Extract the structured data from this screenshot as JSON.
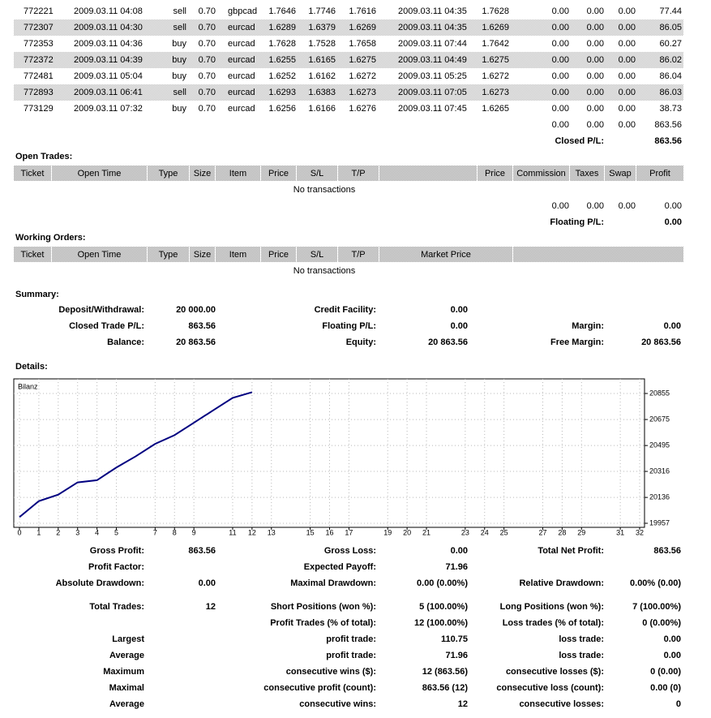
{
  "closed_trades": {
    "rows": [
      [
        "772221",
        "2009.03.11 04:08",
        "sell",
        "0.70",
        "gbpcad",
        "1.7646",
        "1.7746",
        "1.7616",
        "2009.03.11 04:35",
        "1.7628",
        "0.00",
        "0.00",
        "0.00",
        "77.44"
      ],
      [
        "772307",
        "2009.03.11 04:30",
        "sell",
        "0.70",
        "eurcad",
        "1.6289",
        "1.6379",
        "1.6269",
        "2009.03.11 04:35",
        "1.6269",
        "0.00",
        "0.00",
        "0.00",
        "86.05"
      ],
      [
        "772353",
        "2009.03.11 04:36",
        "buy",
        "0.70",
        "eurcad",
        "1.7628",
        "1.7528",
        "1.7658",
        "2009.03.11 07:44",
        "1.7642",
        "0.00",
        "0.00",
        "0.00",
        "60.27"
      ],
      [
        "772372",
        "2009.03.11 04:39",
        "buy",
        "0.70",
        "eurcad",
        "1.6255",
        "1.6165",
        "1.6275",
        "2009.03.11 04:49",
        "1.6275",
        "0.00",
        "0.00",
        "0.00",
        "86.02"
      ],
      [
        "772481",
        "2009.03.11 05:04",
        "buy",
        "0.70",
        "eurcad",
        "1.6252",
        "1.6162",
        "1.6272",
        "2009.03.11 05:25",
        "1.6272",
        "0.00",
        "0.00",
        "0.00",
        "86.04"
      ],
      [
        "772893",
        "2009.03.11 06:41",
        "sell",
        "0.70",
        "eurcad",
        "1.6293",
        "1.6383",
        "1.6273",
        "2009.03.11 07:05",
        "1.6273",
        "0.00",
        "0.00",
        "0.00",
        "86.03"
      ],
      [
        "773129",
        "2009.03.11 07:32",
        "buy",
        "0.70",
        "eurcad",
        "1.6256",
        "1.6166",
        "1.6276",
        "2009.03.11 07:45",
        "1.6265",
        "0.00",
        "0.00",
        "0.00",
        "38.73"
      ]
    ],
    "totals": [
      "0.00",
      "0.00",
      "0.00",
      "863.56"
    ],
    "pl_label": "Closed P/L:",
    "pl_value": "863.56"
  },
  "open_trades": {
    "title": "Open Trades:",
    "headers": [
      "Ticket",
      "Open Time",
      "Type",
      "Size",
      "Item",
      "Price",
      "S/L",
      "T/P",
      "Price",
      "Commission",
      "Taxes",
      "Swap",
      "Profit"
    ],
    "empty": "No transactions",
    "totals": [
      "0.00",
      "0.00",
      "0.00",
      "0.00"
    ],
    "pl_label": "Floating P/L:",
    "pl_value": "0.00"
  },
  "working_orders": {
    "title": "Working Orders:",
    "headers": [
      "Ticket",
      "Open Time",
      "Type",
      "Size",
      "Item",
      "Price",
      "S/L",
      "T/P",
      "Market Price"
    ],
    "empty": "No transactions"
  },
  "summary": {
    "title": "Summary:",
    "rows": [
      {
        "left": {
          "label": "Deposit/Withdrawal:",
          "value": "20 000.00"
        },
        "middle": {
          "label": "Credit Facility:",
          "value": "0.00"
        }
      },
      {
        "left": {
          "label": "Closed Trade P/L:",
          "value": "863.56"
        },
        "middle": {
          "label": "Floating P/L:",
          "value": "0.00"
        },
        "right": {
          "label": "Margin:",
          "value": "0.00"
        }
      },
      {
        "left": {
          "label": "Balance:",
          "value": "20 863.56"
        },
        "middle": {
          "label": "Equity:",
          "value": "20 863.56"
        },
        "right": {
          "label": "Free Margin:",
          "value": "20 863.56"
        }
      }
    ]
  },
  "details": {
    "title": "Details:",
    "stats": [
      {
        "left": {
          "label": "Gross Profit:",
          "value": "863.56"
        },
        "middle": {
          "label": "Gross Loss:",
          "value": "0.00"
        },
        "right": {
          "label": "Total Net Profit:",
          "value": "863.56"
        }
      },
      {
        "left": {
          "label": "Profit Factor:"
        },
        "middle": {
          "label": "Expected Payoff:",
          "value": "71.96"
        }
      },
      {
        "left": {
          "label": "Absolute Drawdown:",
          "value": "0.00"
        },
        "middle": {
          "label": "Maximal Drawdown:",
          "value": "0.00 (0.00%)"
        },
        "right": {
          "label": "Relative Drawdown:",
          "value": "0.00% (0.00)"
        }
      },
      {
        "left": {
          "label": "Total Trades:",
          "value": "12"
        },
        "middle": {
          "label": "Short Positions (won %):",
          "value": "5 (100.00%)"
        },
        "right": {
          "label": "Long Positions (won %):",
          "value": "7 (100.00%)"
        }
      },
      {
        "middle": {
          "label": "Profit Trades (% of total):",
          "value": "12 (100.00%)"
        },
        "right": {
          "label": "Loss trades (% of total):",
          "value": "0 (0.00%)"
        }
      },
      {
        "left": {
          "label": "Largest"
        },
        "middle": {
          "label": "profit trade:",
          "value": "110.75"
        },
        "right": {
          "label": "loss trade:",
          "value": "0.00"
        }
      },
      {
        "left": {
          "label": "Average"
        },
        "middle": {
          "label": "profit trade:",
          "value": "71.96"
        },
        "right": {
          "label": "loss trade:",
          "value": "0.00"
        }
      },
      {
        "left": {
          "label": "Maximum"
        },
        "middle": {
          "label": "consecutive wins ($):",
          "value": "12 (863.56)"
        },
        "right": {
          "label": "consecutive losses ($):",
          "value": "0 (0.00)"
        }
      },
      {
        "left": {
          "label": "Maximal"
        },
        "middle": {
          "label": "consecutive profit (count):",
          "value": "863.56 (12)"
        },
        "right": {
          "label": "consecutive loss (count):",
          "value": "0.00 (0)"
        }
      },
      {
        "left": {
          "label": "Average"
        },
        "middle": {
          "label": "consecutive wins:",
          "value": "12"
        },
        "right": {
          "label": "consecutive losses:",
          "value": "0"
        }
      }
    ]
  },
  "chart_data": {
    "type": "line",
    "title": "Bilanz",
    "x": [
      0,
      1,
      2,
      3,
      4,
      5,
      6,
      7,
      8,
      9,
      10,
      11,
      12
    ],
    "series": [
      {
        "color": "#000080",
        "values": [
          20000,
          20110.75,
          20155,
          20240,
          20255,
          20342.98,
          20420.42,
          20506.47,
          20566.74,
          20652.76,
          20738.8,
          20824.83,
          20863.56
        ]
      }
    ],
    "xlim": [
      0,
      32
    ],
    "xticks": [
      0,
      1,
      2,
      3,
      4,
      5,
      7,
      8,
      9,
      11,
      12,
      13,
      15,
      16,
      17,
      19,
      20,
      21,
      23,
      24,
      25,
      27,
      28,
      29,
      31,
      32
    ],
    "ylim": [
      19929,
      20956
    ],
    "yticks": [
      19957,
      20136,
      20316,
      20495,
      20675,
      20855
    ],
    "grid": true
  }
}
